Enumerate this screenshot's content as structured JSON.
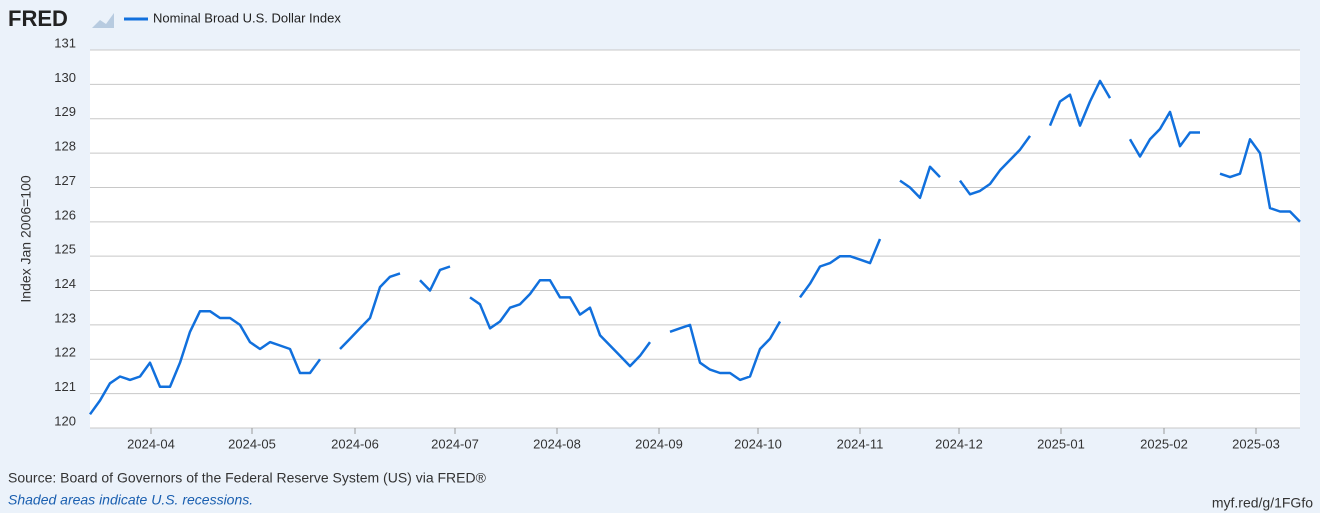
{
  "logo": "FRED",
  "chart_data": {
    "type": "line",
    "series": [
      {
        "name": "Nominal Broad U.S. Dollar Index",
        "color": "#1170dd",
        "values": [
          120.4,
          120.8,
          121.3,
          121.5,
          121.4,
          121.5,
          121.9,
          121.2,
          121.2,
          121.9,
          122.8,
          123.4,
          123.4,
          123.2,
          123.2,
          123.0,
          122.5,
          122.3,
          122.5,
          122.4,
          122.3,
          121.6,
          121.6,
          122.0,
          null,
          122.3,
          122.6,
          122.9,
          123.2,
          124.1,
          124.4,
          124.5,
          null,
          124.3,
          124.0,
          124.6,
          124.7,
          null,
          123.8,
          123.6,
          122.9,
          123.1,
          123.5,
          123.6,
          123.9,
          124.3,
          124.3,
          123.8,
          123.8,
          123.3,
          123.5,
          122.7,
          122.4,
          122.1,
          121.8,
          122.1,
          122.5,
          null,
          122.8,
          122.9,
          123.0,
          121.9,
          121.7,
          121.6,
          121.6,
          121.4,
          121.5,
          122.3,
          122.6,
          123.1,
          null,
          123.8,
          124.2,
          124.7,
          124.8,
          125.0,
          125.0,
          124.9,
          124.8,
          125.5,
          null,
          127.2,
          127.0,
          126.7,
          127.6,
          127.3,
          null,
          127.2,
          126.8,
          126.9,
          127.1,
          127.5,
          127.8,
          128.1,
          128.5,
          null,
          128.8,
          129.5,
          129.7,
          128.8,
          129.5,
          130.1,
          129.6,
          null,
          128.4,
          127.9,
          128.4,
          128.7,
          129.2,
          128.2,
          128.6,
          128.6,
          null,
          127.4,
          127.3,
          127.4,
          128.4,
          128.0,
          126.4,
          126.3,
          126.3,
          126.0
        ]
      }
    ],
    "xlim": [
      0,
      121
    ],
    "xticks": [
      {
        "value": 6.1,
        "label": "2024-04"
      },
      {
        "value": 16.2,
        "label": "2024-05"
      },
      {
        "value": 26.5,
        "label": "2024-06"
      },
      {
        "value": 36.5,
        "label": "2024-07"
      },
      {
        "value": 46.7,
        "label": "2024-08"
      },
      {
        "value": 56.9,
        "label": "2024-09"
      },
      {
        "value": 66.8,
        "label": "2024-10"
      },
      {
        "value": 77,
        "label": "2024-11"
      },
      {
        "value": 86.9,
        "label": "2024-12"
      },
      {
        "value": 97.1,
        "label": "2025-01"
      },
      {
        "value": 107.4,
        "label": "2025-02"
      },
      {
        "value": 116.6,
        "label": "2025-03"
      }
    ],
    "ylim": [
      120,
      131
    ],
    "yticks": [
      120,
      121,
      122,
      123,
      124,
      125,
      126,
      127,
      128,
      129,
      130,
      131
    ],
    "ylabel": "Index Jan 2006=100",
    "grid": true,
    "source": "Source: Board of Governors of the Federal Reserve System (US) via FRED®",
    "note": "Shaded areas indicate U.S. recessions.",
    "url": "myf.red/g/1FGfo"
  }
}
